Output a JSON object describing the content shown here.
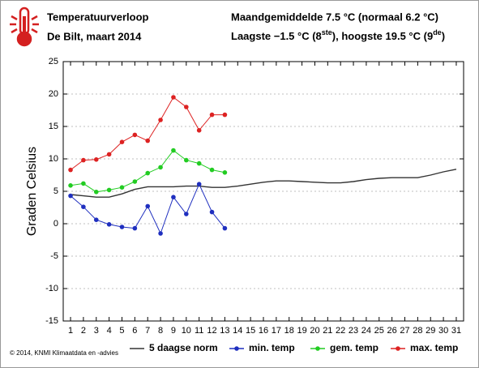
{
  "chart_data": {
    "type": "line",
    "title": "Temperatuurverloop",
    "subtitle": "De Bilt, maart 2014",
    "stats_line1": "Maandgemiddelde 7.5 °C (normaal 6.2 °C)",
    "stats_line2": [
      "Laagste −1.5 °C (8",
      "ste",
      "), hoogste 19.5 °C (9",
      "de",
      ")"
    ],
    "ylabel": "Graden Celsius",
    "footer": "© 2014, KNMI Klimaatdata en -advies",
    "x": [
      1,
      2,
      3,
      4,
      5,
      6,
      7,
      8,
      9,
      10,
      11,
      12,
      13,
      14,
      15,
      16,
      17,
      18,
      19,
      20,
      21,
      22,
      23,
      24,
      25,
      26,
      27,
      28,
      29,
      30,
      31
    ],
    "xlim": [
      0.43,
      31.57
    ],
    "xticks": [
      1,
      2,
      3,
      4,
      5,
      6,
      7,
      8,
      9,
      10,
      11,
      12,
      13,
      14,
      15,
      16,
      17,
      18,
      19,
      20,
      21,
      22,
      23,
      24,
      25,
      26,
      27,
      28,
      29,
      30,
      31
    ],
    "ylim": [
      -15,
      25
    ],
    "yticks": [
      -15,
      -10,
      -5,
      0,
      5,
      10,
      15,
      20,
      25
    ],
    "grid": true,
    "series": [
      {
        "name": "5 daagse norm",
        "color": "#333333",
        "markers": false,
        "values": [
          4.5,
          4.3,
          4.1,
          4.1,
          4.6,
          5.3,
          5.7,
          5.7,
          5.7,
          5.8,
          5.8,
          5.6,
          5.6,
          5.8,
          6.1,
          6.4,
          6.6,
          6.6,
          6.5,
          6.4,
          6.3,
          6.3,
          6.5,
          6.8,
          7.0,
          7.1,
          7.1,
          7.1,
          7.5,
          8.0,
          8.4
        ]
      },
      {
        "name": "min. temp",
        "color": "#1f2fbf",
        "markers": true,
        "values": [
          4.3,
          2.6,
          0.6,
          -0.1,
          -0.5,
          -0.7,
          2.7,
          -1.5,
          4.1,
          1.5,
          6.1,
          1.8,
          -0.7,
          null,
          null,
          null,
          null,
          null,
          null,
          null,
          null,
          null,
          null,
          null,
          null,
          null,
          null,
          null,
          null,
          null,
          null
        ]
      },
      {
        "name": "gem. temp",
        "color": "#22cc22",
        "markers": true,
        "values": [
          5.9,
          6.2,
          4.9,
          5.2,
          5.6,
          6.5,
          7.8,
          8.7,
          11.3,
          9.8,
          9.3,
          8.3,
          7.9,
          null,
          null,
          null,
          null,
          null,
          null,
          null,
          null,
          null,
          null,
          null,
          null,
          null,
          null,
          null,
          null,
          null,
          null
        ]
      },
      {
        "name": "max. temp",
        "color": "#dd2222",
        "markers": true,
        "values": [
          8.3,
          9.8,
          9.9,
          10.7,
          12.6,
          13.7,
          12.8,
          16.0,
          19.5,
          18.0,
          14.4,
          16.8,
          16.8,
          null,
          null,
          null,
          null,
          null,
          null,
          null,
          null,
          null,
          null,
          null,
          null,
          null,
          null,
          null,
          null,
          null,
          null
        ]
      }
    ]
  }
}
